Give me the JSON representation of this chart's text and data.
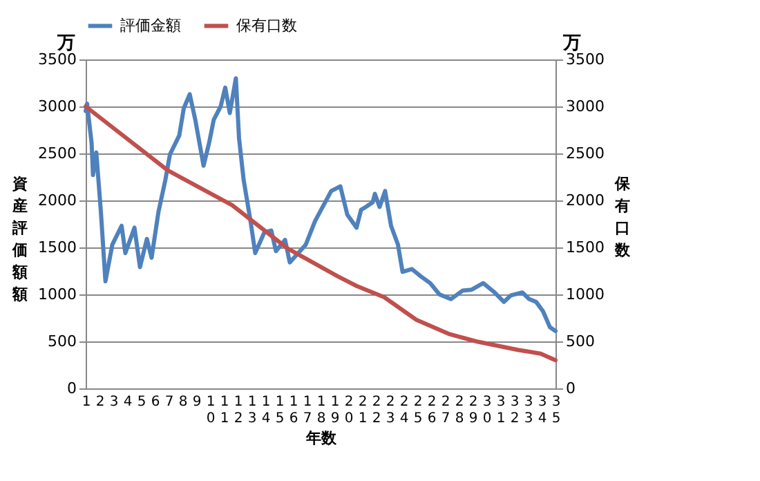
{
  "chart_data": {
    "type": "line",
    "xlabel": "年数",
    "ylabel": "資産評価額額",
    "y2label": "保有口数",
    "annotations": [
      "万",
      "万"
    ],
    "xlim": [
      1,
      35
    ],
    "xticks": [
      1,
      2,
      3,
      4,
      5,
      6,
      7,
      8,
      9,
      10,
      11,
      12,
      13,
      14,
      15,
      16,
      17,
      18,
      19,
      20,
      21,
      22,
      23,
      24,
      25,
      26,
      27,
      28,
      29,
      30,
      31,
      32,
      33,
      34,
      35
    ],
    "ylim": [
      0,
      3500
    ],
    "yticks": [
      0,
      500,
      1000,
      1500,
      2000,
      2500,
      3000,
      3500
    ],
    "y2lim": [
      0,
      3500
    ],
    "y2ticks": [
      0,
      500,
      1000,
      1500,
      2000,
      2500,
      3000,
      3500
    ],
    "grid": "y",
    "legend": "top",
    "line_style": "solid",
    "marker": "none",
    "series": [
      {
        "name": "評価金額",
        "color": "#4f81bd",
        "x": [
          1,
          1.1,
          1.43,
          1.53,
          1.77,
          2.1,
          2.43,
          2.93,
          3.6,
          3.87,
          4.53,
          4.93,
          5.43,
          5.77,
          6.27,
          6.77,
          7.1,
          7.77,
          8.1,
          8.53,
          8.93,
          9.53,
          9.93,
          10.27,
          10.77,
          11.1,
          11.43,
          11.87,
          12.1,
          12.43,
          12.93,
          13.27,
          13.93,
          14.43,
          14.77,
          15.43,
          15.77,
          16.93,
          17.6,
          18.77,
          19.43,
          19.93,
          20.6,
          20.93,
          21.27,
          21.77,
          21.93,
          22.27,
          22.67,
          23.1,
          23.6,
          23.93,
          24.6,
          25.27,
          25.93,
          26.6,
          27.43,
          28.27,
          28.93,
          29.77,
          30.6,
          31.27,
          31.77,
          32.6,
          33.1,
          33.6,
          34.1,
          34.6,
          35
        ],
        "values": [
          2950,
          3030,
          2610,
          2270,
          2510,
          1880,
          1140,
          1530,
          1730,
          1440,
          1710,
          1290,
          1590,
          1390,
          1880,
          2220,
          2490,
          2690,
          2980,
          3130,
          2860,
          2370,
          2610,
          2860,
          3000,
          3200,
          2930,
          3300,
          2660,
          2220,
          1780,
          1440,
          1660,
          1680,
          1460,
          1580,
          1340,
          1530,
          1780,
          2100,
          2150,
          1850,
          1710,
          1900,
          1930,
          1980,
          2070,
          1930,
          2100,
          1730,
          1530,
          1240,
          1270,
          1190,
          1120,
          1000,
          950,
          1040,
          1050,
          1120,
          1020,
          920,
          990,
          1020,
          950,
          920,
          820,
          650,
          610
        ]
      },
      {
        "name": "保有口数",
        "color": "#c0504d",
        "axis": "y2",
        "x": [
          1,
          6.93,
          11.6,
          15.6,
          19.27,
          20.6,
          22.6,
          24.93,
          27.27,
          29.27,
          32.27,
          33.93,
          35
        ],
        "values": [
          3000,
          2320,
          1950,
          1490,
          1190,
          1090,
          970,
          730,
          580,
          500,
          410,
          370,
          300
        ]
      }
    ]
  }
}
